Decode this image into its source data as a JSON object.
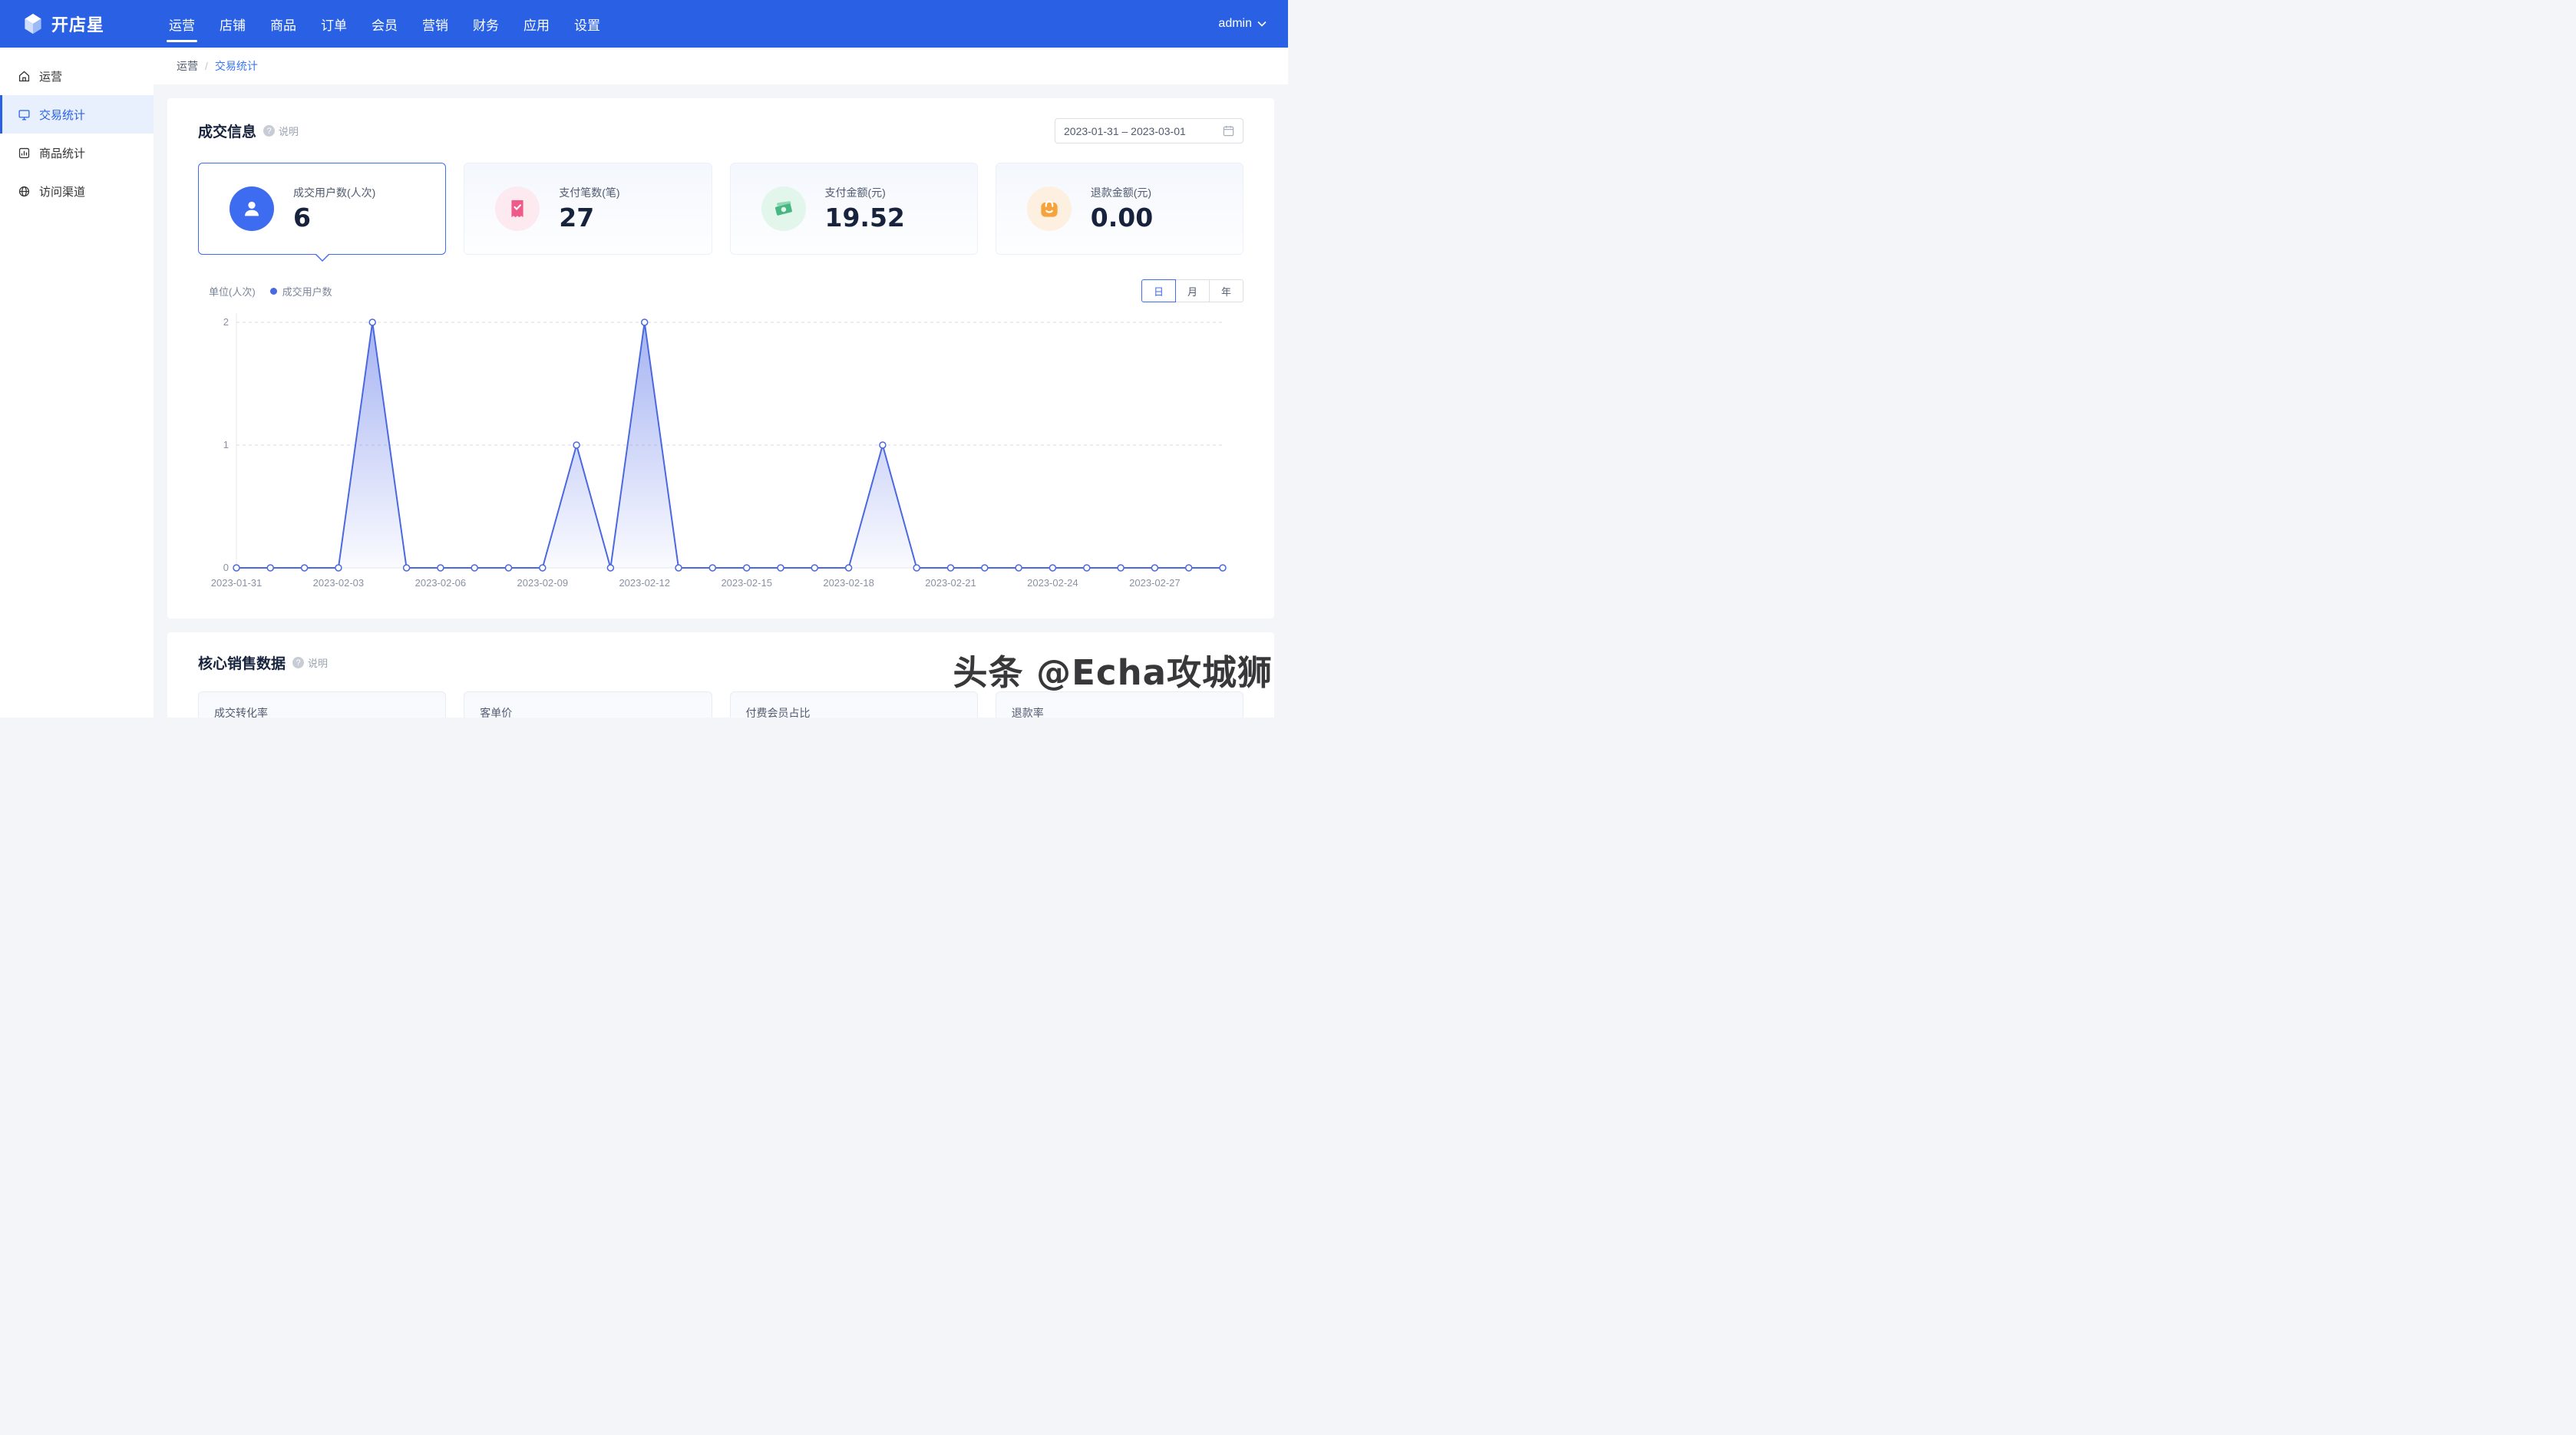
{
  "navbar": {
    "logo_text": "开店星",
    "user_label": "admin",
    "items": [
      {
        "label": "运营",
        "active": true
      },
      {
        "label": "店铺"
      },
      {
        "label": "商品"
      },
      {
        "label": "订单"
      },
      {
        "label": "会员"
      },
      {
        "label": "营销"
      },
      {
        "label": "财务"
      },
      {
        "label": "应用"
      },
      {
        "label": "设置"
      }
    ]
  },
  "sidebar": {
    "items": [
      {
        "label": "运营",
        "icon": "home-icon"
      },
      {
        "label": "交易统计",
        "icon": "monitor-icon",
        "active": true
      },
      {
        "label": "商品统计",
        "icon": "goods-chart-icon"
      },
      {
        "label": "访问渠道",
        "icon": "globe-icon"
      }
    ]
  },
  "breadcrumb": {
    "parent": "运营",
    "separator": "/",
    "current": "交易统计"
  },
  "deal_info": {
    "title": "成交信息",
    "help_label": "说明",
    "date_range": "2023-01-31 – 2023-03-01",
    "stats": [
      {
        "label": "成交用户数(人次)",
        "value": "6",
        "icon": "user-icon",
        "selected": true
      },
      {
        "label": "支付笔数(笔)",
        "value": "27",
        "icon": "receipt-icon"
      },
      {
        "label": "支付金额(元)",
        "value": "19.52",
        "icon": "money-icon"
      },
      {
        "label": "退款金额(元)",
        "value": "0.00",
        "icon": "bag-icon"
      }
    ],
    "chart_unit": "单位(人次)",
    "legend_label": "成交用户数",
    "period_tabs": [
      {
        "label": "日",
        "active": true
      },
      {
        "label": "月"
      },
      {
        "label": "年"
      }
    ]
  },
  "chart_data": {
    "type": "area",
    "series_name": "成交用户数",
    "unit_label": "单位(人次)",
    "x": [
      "2023-01-31",
      "2023-02-01",
      "2023-02-02",
      "2023-02-03",
      "2023-02-04",
      "2023-02-05",
      "2023-02-06",
      "2023-02-07",
      "2023-02-08",
      "2023-02-09",
      "2023-02-10",
      "2023-02-11",
      "2023-02-12",
      "2023-02-13",
      "2023-02-14",
      "2023-02-15",
      "2023-02-16",
      "2023-02-17",
      "2023-02-18",
      "2023-02-19",
      "2023-02-20",
      "2023-02-21",
      "2023-02-22",
      "2023-02-23",
      "2023-02-24",
      "2023-02-25",
      "2023-02-26",
      "2023-02-27",
      "2023-02-28",
      "2023-03-01"
    ],
    "values": [
      0,
      0,
      0,
      0,
      2,
      0,
      0,
      0,
      0,
      0,
      1,
      0,
      2,
      0,
      0,
      0,
      0,
      0,
      0,
      1,
      0,
      0,
      0,
      0,
      0,
      0,
      0,
      0,
      0,
      0
    ],
    "ylim": [
      0,
      2
    ],
    "yticks": [
      0,
      1,
      2
    ],
    "xtick_every": 3,
    "grid": "dashed-horizontal",
    "legend_position": "top-left",
    "line_color": "#4a68e0",
    "area_color": "#5b74e8",
    "marker": "hollow-circle"
  },
  "core_sales": {
    "title": "核心销售数据",
    "help_label": "说明",
    "stats": [
      {
        "label": "成交转化率"
      },
      {
        "label": "客单价"
      },
      {
        "label": "付费会员占比"
      },
      {
        "label": "退款率"
      }
    ]
  },
  "watermark": "头条 @Echa攻城狮",
  "colors": {
    "navbar_bg": "#2a61e4",
    "accent": "#3f6bf5",
    "chart_line": "#4a68e0",
    "stat_icon_blue": "#3e6cf0",
    "stat_icon_pink": "#ef5a8a",
    "stat_icon_green": "#47b881",
    "stat_icon_orange": "#f5a33c",
    "sidebar_active_bg": "#e9f0fd",
    "content_bg": "#f3f5f8"
  }
}
